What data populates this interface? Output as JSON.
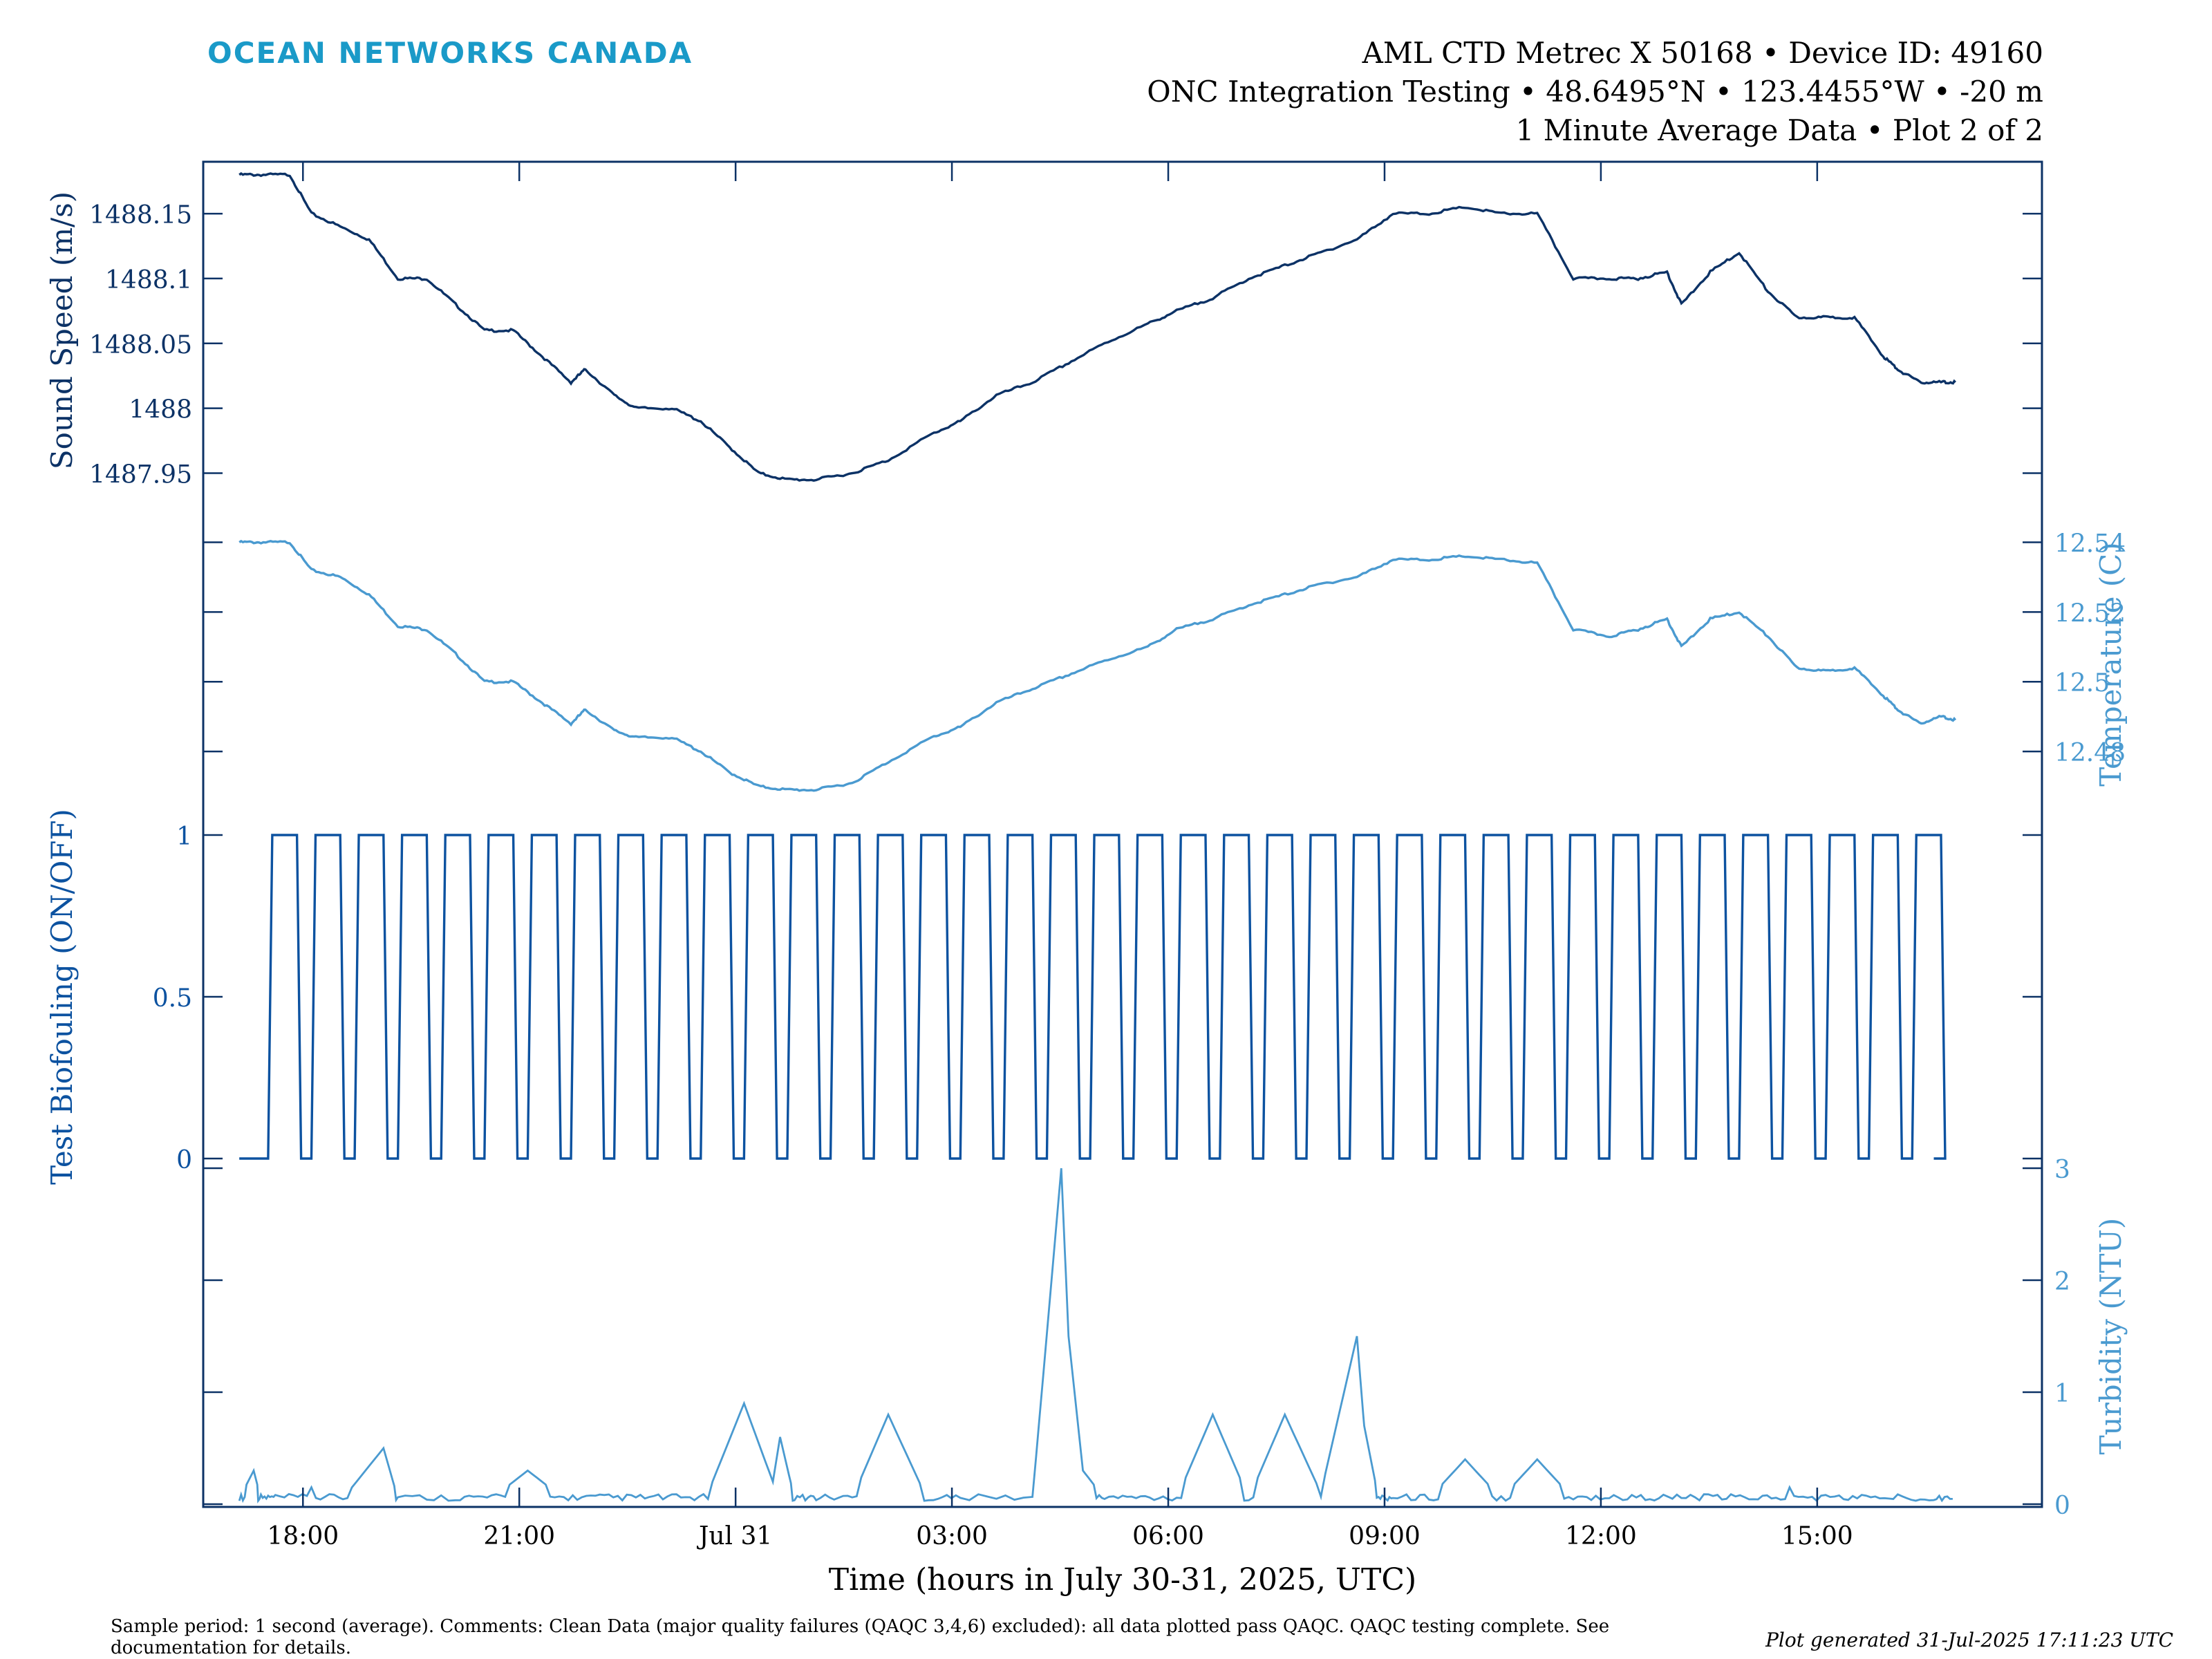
{
  "header": {
    "brand": "OCEAN NETWORKS CANADA",
    "brand_color": "#1a9ac8",
    "line1": "AML CTD Metrec X 50168 • Device ID: 49160",
    "line2": "ONC Integration Testing • 48.6495°N • 123.4455°W • -20 m",
    "line3": "1 Minute Average Data • Plot 2 of 2"
  },
  "footer": {
    "comments": "Sample period: 1 second (average). Comments: Clean Data (major quality failures (QAQC 3,4,6) excluded): all data plotted pass QAQC. QAQC testing complete. See documentation for details.",
    "generated": "Plot generated 31-Jul-2025 17:11:23 UTC"
  },
  "colors": {
    "dark": "#0c3266",
    "mid": "#0c52a0",
    "light": "#4a9ad0",
    "axis": "#0c3266"
  },
  "chart_data": [
    {
      "type": "line",
      "series": [
        {
          "name": "Sound Speed (m/s)",
          "x": [
            0,
            0.3,
            0.7,
            1,
            1.4,
            1.8,
            2.2,
            2.6,
            3,
            3.4,
            3.8,
            4.2,
            4.6,
            4.8,
            5.2,
            5.5,
            6,
            6.4,
            6.8,
            7.2,
            7.6,
            8,
            8.5,
            9,
            9.6,
            10,
            10.5,
            11,
            11.5,
            12,
            12.6,
            13,
            13.5,
            14,
            14.5,
            15,
            15.5,
            16,
            16.5,
            17,
            17.5,
            18,
            18.5,
            19,
            19.4,
            19.8,
            20,
            20.4,
            20.8,
            21.2,
            21.6,
            22,
            22.4,
            22.8,
            23,
            23.3,
            23.6,
            23.8
          ],
          "values": [
            1488.18,
            1488.18,
            1488.18,
            1488.15,
            1488.14,
            1488.13,
            1488.1,
            1488.1,
            1488.08,
            1488.06,
            1488.06,
            1488.04,
            1488.02,
            1488.03,
            1488.01,
            1488,
            1488,
            1487.99,
            1487.97,
            1487.95,
            1487.945,
            1487.945,
            1487.95,
            1487.96,
            1487.98,
            1487.99,
            1488.01,
            1488.02,
            1488.035,
            1488.05,
            1488.065,
            1488.075,
            1488.085,
            1488.1,
            1488.11,
            1488.12,
            1488.13,
            1488.15,
            1488.15,
            1488.155,
            1488.15,
            1488.15,
            1488.1,
            1488.1,
            1488.1,
            1488.105,
            1488.08,
            1488.105,
            1488.12,
            1488.09,
            1488.07,
            1488.07,
            1488.07,
            1488.04,
            1488.03,
            1488.02,
            1488.02,
            1488.02
          ]
        }
      ],
      "yticks": [
        "1487.95",
        "1488",
        "1488.05",
        "1488.1",
        "1488.15"
      ],
      "ylim": [
        1487.93,
        1488.19
      ],
      "ylabel": "Sound Speed (m/s)"
    },
    {
      "type": "line",
      "series": [
        {
          "name": "Temperature (C)",
          "x": [
            0,
            0.3,
            0.7,
            1,
            1.4,
            1.8,
            2.2,
            2.6,
            3,
            3.4,
            3.8,
            4.2,
            4.6,
            4.8,
            5.2,
            5.5,
            6,
            6.4,
            6.8,
            7.2,
            7.6,
            8,
            8.5,
            9,
            9.6,
            10,
            10.5,
            11,
            11.5,
            12,
            12.6,
            13,
            13.5,
            14,
            14.5,
            15,
            15.5,
            16,
            16.5,
            17,
            17.5,
            18,
            18.5,
            19,
            19.4,
            19.8,
            20,
            20.4,
            20.8,
            21.2,
            21.6,
            22,
            22.4,
            22.8,
            23,
            23.3,
            23.6,
            23.8
          ],
          "values": [
            12.54,
            12.54,
            12.54,
            12.532,
            12.53,
            12.525,
            12.516,
            12.515,
            12.508,
            12.5,
            12.5,
            12.494,
            12.488,
            12.492,
            12.486,
            12.484,
            12.484,
            12.48,
            12.474,
            12.47,
            12.469,
            12.469,
            12.471,
            12.477,
            12.484,
            12.487,
            12.494,
            12.498,
            12.502,
            12.506,
            12.51,
            12.515,
            12.518,
            12.522,
            12.525,
            12.528,
            12.53,
            12.535,
            12.535,
            12.536,
            12.535,
            12.534,
            12.515,
            12.513,
            12.515,
            12.518,
            12.51,
            12.518,
            12.52,
            12.513,
            12.504,
            12.503,
            12.504,
            12.496,
            12.492,
            12.488,
            12.49,
            12.489
          ]
        }
      ],
      "yticks": [
        "12.48",
        "12.5",
        "12.52",
        "12.54"
      ],
      "ylim": [
        12.46,
        12.55
      ],
      "ylabel": "Temperature (C)"
    },
    {
      "type": "line",
      "series": [
        {
          "name": "Test Biofouling (ON/OFF)",
          "x": [
            0.4,
            0.8,
            1,
            1.4,
            1.6,
            2,
            2.2,
            2.6,
            2.8,
            3.2,
            3.4,
            3.8,
            4,
            4.4,
            4.6,
            5,
            5.2,
            5.6,
            5.8,
            6.2,
            6.4,
            6.8,
            7,
            7.4,
            7.6,
            8,
            8.2,
            8.6,
            8.8,
            9.2,
            9.4,
            9.8,
            10,
            10.4,
            10.6,
            11,
            11.2,
            11.6,
            11.8,
            12.2,
            12.4,
            12.8,
            13,
            13.4,
            13.6,
            14,
            14.2,
            14.6,
            14.8,
            15.2,
            15.4,
            15.8,
            16,
            16.4,
            16.6,
            17,
            17.2,
            17.6,
            17.8,
            18.2,
            18.4,
            18.8,
            19,
            19.4,
            19.6,
            20,
            20.2,
            20.6,
            20.8,
            21.2,
            21.4,
            21.8,
            22,
            22.4,
            22.6,
            23,
            23.2,
            23.6
          ],
          "states": "alternating 0→1 at even indices, 1→0 at odd indices"
        }
      ],
      "yticks": [
        "0",
        "0.5",
        "1"
      ],
      "ylim": [
        0,
        1
      ],
      "ylabel": "Test Biofouling (ON/OFF)"
    },
    {
      "type": "line",
      "series": [
        {
          "name": "Turbidity (NTU)",
          "x": [
            0,
            0.2,
            0.3,
            0.5,
            1,
            1.5,
            2,
            2.2,
            3,
            3.5,
            4,
            4.5,
            5,
            5.5,
            6,
            6.5,
            7,
            7.4,
            7.5,
            7.7,
            8,
            8.5,
            9,
            9.5,
            10,
            11,
            11.4,
            11.5,
            11.7,
            12,
            12.5,
            13,
            13.5,
            14,
            14.5,
            15,
            15.5,
            15.6,
            15.8,
            16,
            16.5,
            17,
            17.5,
            18,
            18.5,
            19,
            19.5,
            20,
            20.5,
            21,
            21.5,
            22,
            22.5,
            23,
            23.5,
            23.8
          ],
          "values": [
            0.05,
            0.3,
            0.05,
            0.05,
            0.15,
            0.1,
            0.5,
            0.05,
            0.05,
            0.05,
            0.3,
            0.05,
            0.05,
            0.05,
            0.05,
            0.1,
            0.9,
            0.2,
            0.6,
            0.05,
            0.05,
            0.05,
            0.8,
            0.1,
            0.05,
            0.05,
            3,
            1.5,
            0.3,
            0.05,
            0.05,
            0.05,
            0.8,
            0.05,
            0.8,
            0.1,
            1.5,
            0.7,
            0.05,
            0.05,
            0.05,
            0.4,
            0.05,
            0.4,
            0.05,
            0.05,
            0.05,
            0.05,
            0.1,
            0.05,
            0.15,
            0.05,
            0.05,
            0.05,
            0.1,
            0.05
          ]
        }
      ],
      "yticks": [
        "0",
        "1",
        "2",
        "3"
      ],
      "ylim": [
        0,
        3
      ],
      "ylabel": "Turbidity (NTU)"
    }
  ],
  "xaxis": {
    "label": "Time (hours in July 30-31, 2025, UTC)",
    "ticks": [
      "18:00",
      "21:00",
      "Jul 31",
      "03:00",
      "06:00",
      "09:00",
      "12:00",
      "15:00"
    ]
  }
}
